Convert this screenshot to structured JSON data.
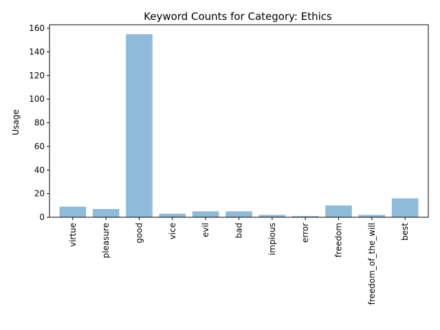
{
  "chart_data": {
    "type": "bar",
    "title": "Keyword Counts for Category: Ethics",
    "xlabel": "",
    "ylabel": "Usage",
    "categories": [
      "virtue",
      "pleasure",
      "good",
      "vice",
      "evil",
      "bad",
      "impious",
      "error",
      "freedom",
      "freedom_of_the_will",
      "best"
    ],
    "values": [
      9,
      7,
      155,
      3,
      5,
      5,
      2,
      1,
      10,
      2,
      16
    ],
    "ylim": [
      0,
      163
    ],
    "yticks": [
      0,
      20,
      40,
      60,
      80,
      100,
      120,
      140,
      160
    ],
    "bar_color": "#8fbbda",
    "grid": false,
    "legend": "none"
  }
}
